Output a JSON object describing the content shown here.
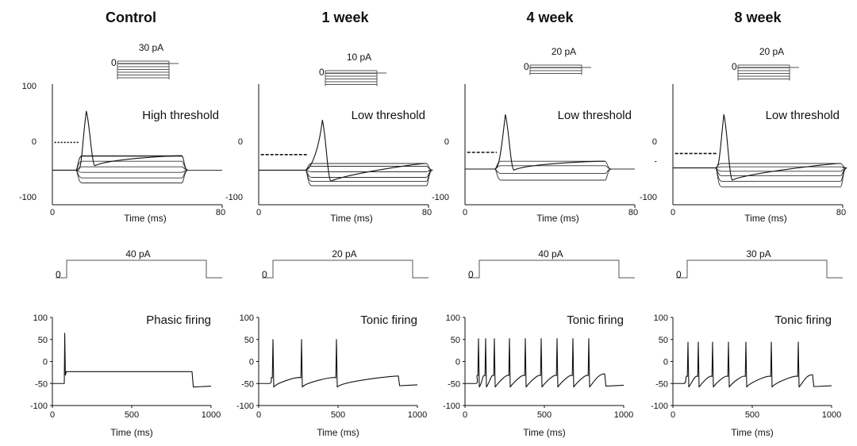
{
  "columns": [
    {
      "title": "Control",
      "step_protocol": {
        "label": "30  pA",
        "baseline": "0",
        "n_steps": 7
      },
      "vclamp": {
        "y_ticks": [
          "100",
          "0",
          "-100"
        ],
        "x_ticks": [
          "0",
          "80"
        ],
        "xlabel": "Time (ms)",
        "annotation": "High threshold",
        "threshold_mv": -2,
        "rest_mv": -52,
        "spike": {
          "t_ms": 16,
          "peak_mv": 54,
          "ahp_mv": -44,
          "t_onset_ms": 12
        },
        "step_window_ms": [
          11,
          61
        ],
        "step_levels_mv": [
          -26,
          -27,
          -36,
          -46,
          -56,
          -66,
          -75
        ],
        "tail_mv": -52
      },
      "pulse": {
        "label": "40  pA",
        "baseline": "0"
      },
      "iclamp": {
        "y_ticks": [
          "100",
          "50",
          "0",
          "-50",
          "-100"
        ],
        "x_ticks": [
          "0",
          "500",
          "1000"
        ],
        "xlabel": "Time (ms)",
        "annotation": "Phasic firing",
        "rest_mv": -50,
        "plateau_mv": -23,
        "post_mv": -58,
        "spike_times_ms": [
          78
        ],
        "spike_peak_mv": 64,
        "pulse_window_ms": [
          70,
          880
        ],
        "firing": "phasic"
      }
    },
    {
      "title": "1 week",
      "step_protocol": {
        "label": "10 pA",
        "baseline": "0",
        "n_steps": 6
      },
      "vclamp": {
        "y_ticks": [
          "0",
          "-100"
        ],
        "x_ticks": [
          "0",
          "80"
        ],
        "xlabel": "Time (ms)",
        "annotation": "Low threshold",
        "threshold_mv": -24,
        "rest_mv": -52,
        "spike": {
          "t_ms": 30,
          "peak_mv": 38,
          "ahp_mv": -72,
          "t_onset_ms": 22
        },
        "step_window_ms": [
          22,
          79
        ],
        "step_levels_mv": [
          -40,
          -45,
          -55,
          -65,
          -72,
          -80
        ],
        "tail_mv": -52
      },
      "pulse": {
        "label": "20 pA",
        "baseline": "0"
      },
      "iclamp": {
        "y_ticks": [
          "100",
          "50",
          "0",
          "-50",
          "-100"
        ],
        "x_ticks": [
          "0",
          "500",
          "1000"
        ],
        "xlabel": "Time (ms)",
        "annotation": "Tonic firing",
        "rest_mv": -50,
        "plateau_mv": -33,
        "post_mv": -55,
        "spike_times_ms": [
          90,
          270,
          490
        ],
        "spike_peak_mv": 50,
        "pulse_window_ms": [
          70,
          880
        ],
        "firing": "tonic"
      }
    },
    {
      "title": "4 week",
      "step_protocol": {
        "label": "20 pA",
        "baseline": "0",
        "n_steps": 4
      },
      "vclamp": {
        "y_ticks": [
          "0",
          "-100"
        ],
        "x_ticks": [
          "0",
          "80"
        ],
        "xlabel": "Time (ms)",
        "annotation": "Low threshold",
        "threshold_mv": -20,
        "rest_mv": -50,
        "spike": {
          "t_ms": 19,
          "peak_mv": 48,
          "ahp_mv": -52,
          "t_onset_ms": 14
        },
        "step_window_ms": [
          14,
          66
        ],
        "step_levels_mv": [
          -36,
          -44,
          -58,
          -70
        ],
        "tail_mv": -50
      },
      "pulse": {
        "label": "40  pA",
        "baseline": "0"
      },
      "iclamp": {
        "y_ticks": [
          "100",
          "50",
          "0",
          "-50",
          "-100"
        ],
        "x_ticks": [
          "0",
          "500",
          "1000"
        ],
        "xlabel": "Time (ms)",
        "annotation": "Tonic firing",
        "rest_mv": -50,
        "plateau_mv": -28,
        "post_mv": -56,
        "spike_times_ms": [
          85,
          130,
          185,
          280,
          380,
          480,
          580,
          680,
          780
        ],
        "spike_peak_mv": 52,
        "pulse_window_ms": [
          70,
          880
        ],
        "firing": "tonic"
      }
    },
    {
      "title": "8 week",
      "step_protocol": {
        "label": "20 pA",
        "baseline": "0",
        "n_steps": 6
      },
      "vclamp": {
        "y_ticks": [
          "0",
          "-",
          "-100"
        ],
        "x_ticks": [
          "0",
          "80"
        ],
        "xlabel": "Time (ms)",
        "annotation": "Low threshold",
        "threshold_mv": -22,
        "rest_mv": -48,
        "spike": {
          "t_ms": 24,
          "peak_mv": 48,
          "ahp_mv": -70,
          "t_onset_ms": 20
        },
        "step_window_ms": [
          20,
          79
        ],
        "step_levels_mv": [
          -40,
          -46,
          -54,
          -62,
          -72,
          -82
        ],
        "tail_mv": -48
      },
      "pulse": {
        "label": "30  pA",
        "baseline": "0"
      },
      "iclamp": {
        "y_ticks": [
          "100",
          "50",
          "0",
          "-50",
          "-100"
        ],
        "x_ticks": [
          "0",
          "500",
          "1000"
        ],
        "xlabel": "Time (ms)",
        "annotation": "Tonic firing",
        "rest_mv": -50,
        "plateau_mv": -30,
        "post_mv": -57,
        "spike_times_ms": [
          95,
          160,
          250,
          350,
          460,
          620,
          790
        ],
        "spike_peak_mv": 44,
        "pulse_window_ms": [
          70,
          880
        ],
        "firing": "tonic"
      }
    }
  ],
  "chart_data": [
    {
      "type": "line",
      "title": "Control",
      "xlabel": "Time (ms)",
      "xlim": [
        0,
        80
      ],
      "ylim": [
        -100,
        100
      ],
      "annotation": "High threshold"
    },
    {
      "type": "line",
      "title": "1 week",
      "xlabel": "Time (ms)",
      "xlim": [
        0,
        80
      ],
      "ylim": [
        -100,
        100
      ],
      "annotation": "Low threshold"
    },
    {
      "type": "line",
      "title": "4 week",
      "xlabel": "Time (ms)",
      "xlim": [
        0,
        80
      ],
      "ylim": [
        -100,
        100
      ],
      "annotation": "Low threshold"
    },
    {
      "type": "line",
      "title": "8 week",
      "xlabel": "Time (ms)",
      "xlim": [
        0,
        80
      ],
      "ylim": [
        -100,
        100
      ],
      "annotation": "Low threshold"
    },
    {
      "type": "line",
      "title": "",
      "xlabel": "Time (ms)",
      "xlim": [
        0,
        1000
      ],
      "ylim": [
        -100,
        100
      ],
      "annotation": "Phasic firing"
    },
    {
      "type": "line",
      "title": "",
      "xlabel": "Time (ms)",
      "xlim": [
        0,
        1000
      ],
      "ylim": [
        -100,
        100
      ],
      "annotation": "Tonic firing"
    },
    {
      "type": "line",
      "title": "",
      "xlabel": "Time (ms)",
      "xlim": [
        0,
        1000
      ],
      "ylim": [
        -100,
        100
      ],
      "annotation": "Tonic firing"
    },
    {
      "type": "line",
      "title": "",
      "xlabel": "Time (ms)",
      "xlim": [
        0,
        1000
      ],
      "ylim": [
        -100,
        100
      ],
      "annotation": "Tonic firing"
    }
  ]
}
